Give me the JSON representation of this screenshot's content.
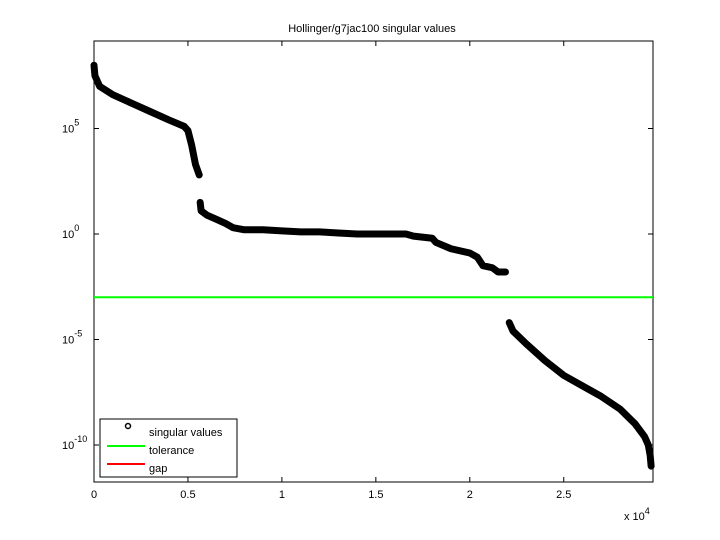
{
  "chart_data": {
    "type": "scatter",
    "title": "Hollinger/g7jac100 singular values",
    "xlabel": "",
    "ylabel": "",
    "x_scale": "linear",
    "y_scale": "log",
    "x_multiplier_label": "x 10",
    "x_multiplier_exp": "4",
    "xlim": [
      0,
      29750
    ],
    "ylim_log10": [
      -11.8,
      9.2
    ],
    "x_ticks": [
      {
        "value": 0,
        "label": "0"
      },
      {
        "value": 5000,
        "label": "0.5"
      },
      {
        "value": 10000,
        "label": "1"
      },
      {
        "value": 15000,
        "label": "1.5"
      },
      {
        "value": 20000,
        "label": "2"
      },
      {
        "value": 25000,
        "label": "2.5"
      }
    ],
    "y_ticks": [
      {
        "log10": 5,
        "base": "10",
        "exp": "5"
      },
      {
        "log10": 0,
        "base": "10",
        "exp": "0"
      },
      {
        "log10": -5,
        "base": "10",
        "exp": "-5"
      },
      {
        "log10": -10,
        "base": "10",
        "exp": "-10"
      }
    ],
    "grid": false,
    "legend_position": "lower left",
    "legend": [
      {
        "label": "singular values",
        "style": "marker-circle",
        "color": "#000000"
      },
      {
        "label": "tolerance",
        "style": "line",
        "color": "#00ff00"
      },
      {
        "label": "gap",
        "style": "line",
        "color": "#ff0000"
      }
    ],
    "series": [
      {
        "name": "singular values",
        "color": "#000000",
        "points_log10": [
          [
            0,
            8.0
          ],
          [
            50,
            7.5
          ],
          [
            300,
            7.0
          ],
          [
            1000,
            6.6
          ],
          [
            2000,
            6.2
          ],
          [
            3000,
            5.8
          ],
          [
            4000,
            5.4
          ],
          [
            4800,
            5.1
          ],
          [
            5000,
            4.9
          ],
          [
            5200,
            4.2
          ],
          [
            5400,
            3.3
          ],
          [
            5600,
            2.8
          ],
          [
            5650,
            1.5
          ],
          [
            5700,
            1.1
          ],
          [
            6000,
            0.9
          ],
          [
            6500,
            0.7
          ],
          [
            7000,
            0.5
          ],
          [
            7400,
            0.3
          ],
          [
            8000,
            0.2
          ],
          [
            9000,
            0.2
          ],
          [
            10000,
            0.15
          ],
          [
            11000,
            0.1
          ],
          [
            12000,
            0.1
          ],
          [
            13000,
            0.05
          ],
          [
            14000,
            0.0
          ],
          [
            15000,
            0.0
          ],
          [
            16000,
            0.0
          ],
          [
            16600,
            0.0
          ],
          [
            17000,
            -0.1
          ],
          [
            18000,
            -0.2
          ],
          [
            18200,
            -0.4
          ],
          [
            19000,
            -0.7
          ],
          [
            20000,
            -0.9
          ],
          [
            20400,
            -1.1
          ],
          [
            20700,
            -1.5
          ],
          [
            21200,
            -1.6
          ],
          [
            21500,
            -1.8
          ],
          [
            21900,
            -1.8
          ],
          [
            21950,
            -2.4
          ],
          [
            22000,
            -3.2
          ],
          [
            22100,
            -4.2
          ],
          [
            22300,
            -4.6
          ],
          [
            23000,
            -5.2
          ],
          [
            24000,
            -6.0
          ],
          [
            25000,
            -6.7
          ],
          [
            26000,
            -7.2
          ],
          [
            27000,
            -7.7
          ],
          [
            28000,
            -8.3
          ],
          [
            28800,
            -9.0
          ],
          [
            29300,
            -9.6
          ],
          [
            29500,
            -10.0
          ],
          [
            29600,
            -10.5
          ],
          [
            29650,
            -11.0
          ]
        ]
      },
      {
        "name": "tolerance",
        "color": "#00ff00",
        "y_log10": -3.0
      }
    ]
  }
}
